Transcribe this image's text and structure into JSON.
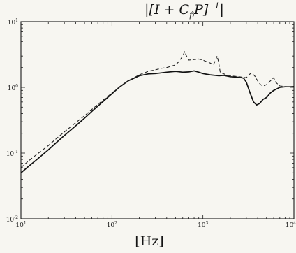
{
  "chart_data": {
    "type": "line",
    "title": "|[I + C_p P]^-1|",
    "title_parts": {
      "open": "|[I + C",
      "sub": "p̂",
      "close": "P]",
      "sup": "−1",
      "end": "|"
    },
    "xlabel": "[Hz]",
    "ylabel": "",
    "x_scale": "log",
    "y_scale": "log",
    "xlim": [
      10,
      10000
    ],
    "ylim": [
      0.01,
      10
    ],
    "xticks": [
      {
        "base": "10",
        "exp": "1",
        "value": 10
      },
      {
        "base": "10",
        "exp": "2",
        "value": 100
      },
      {
        "base": "10",
        "exp": "3",
        "value": 1000
      },
      {
        "base": "10",
        "exp": "4",
        "value": 10000
      }
    ],
    "yticks": [
      {
        "base": "10",
        "exp": "-2",
        "value": 0.01
      },
      {
        "base": "10",
        "exp": "-1",
        "value": 0.1
      },
      {
        "base": "10",
        "exp": "0",
        "value": 1
      },
      {
        "base": "10",
        "exp": "1",
        "value": 10
      }
    ],
    "grid": false,
    "series": [
      {
        "style": "solid",
        "color": "#111111",
        "points": [
          [
            10,
            0.05
          ],
          [
            12,
            0.062
          ],
          [
            15,
            0.08
          ],
          [
            20,
            0.112
          ],
          [
            25,
            0.148
          ],
          [
            30,
            0.185
          ],
          [
            40,
            0.26
          ],
          [
            50,
            0.34
          ],
          [
            60,
            0.43
          ],
          [
            70,
            0.52
          ],
          [
            80,
            0.61
          ],
          [
            100,
            0.8
          ],
          [
            120,
            1.0
          ],
          [
            150,
            1.25
          ],
          [
            200,
            1.5
          ],
          [
            250,
            1.6
          ],
          [
            300,
            1.62
          ],
          [
            400,
            1.7
          ],
          [
            500,
            1.75
          ],
          [
            600,
            1.7
          ],
          [
            700,
            1.72
          ],
          [
            800,
            1.78
          ],
          [
            900,
            1.7
          ],
          [
            1000,
            1.62
          ],
          [
            1200,
            1.55
          ],
          [
            1500,
            1.5
          ],
          [
            1700,
            1.52
          ],
          [
            2000,
            1.45
          ],
          [
            2500,
            1.42
          ],
          [
            2800,
            1.38
          ],
          [
            3000,
            1.2
          ],
          [
            3300,
            0.82
          ],
          [
            3600,
            0.6
          ],
          [
            3900,
            0.54
          ],
          [
            4200,
            0.57
          ],
          [
            4600,
            0.66
          ],
          [
            5000,
            0.7
          ],
          [
            5500,
            0.82
          ],
          [
            6000,
            0.9
          ],
          [
            6500,
            0.95
          ],
          [
            7000,
            1.0
          ],
          [
            8000,
            1.02
          ],
          [
            9000,
            1.02
          ],
          [
            10000,
            1.03
          ]
        ]
      },
      {
        "style": "dashed",
        "color": "#222222",
        "points": [
          [
            10,
            0.06
          ],
          [
            12,
            0.075
          ],
          [
            15,
            0.096
          ],
          [
            20,
            0.13
          ],
          [
            25,
            0.17
          ],
          [
            30,
            0.21
          ],
          [
            40,
            0.29
          ],
          [
            50,
            0.37
          ],
          [
            60,
            0.46
          ],
          [
            70,
            0.55
          ],
          [
            80,
            0.64
          ],
          [
            100,
            0.82
          ],
          [
            120,
            1.0
          ],
          [
            150,
            1.25
          ],
          [
            200,
            1.55
          ],
          [
            250,
            1.75
          ],
          [
            300,
            1.85
          ],
          [
            350,
            1.95
          ],
          [
            400,
            2.0
          ],
          [
            450,
            2.1
          ],
          [
            500,
            2.2
          ],
          [
            550,
            2.5
          ],
          [
            600,
            3.0
          ],
          [
            630,
            3.5
          ],
          [
            660,
            3.0
          ],
          [
            700,
            2.6
          ],
          [
            800,
            2.65
          ],
          [
            900,
            2.7
          ],
          [
            1000,
            2.6
          ],
          [
            1100,
            2.45
          ],
          [
            1200,
            2.35
          ],
          [
            1300,
            2.2
          ],
          [
            1380,
            2.6
          ],
          [
            1430,
            3.0
          ],
          [
            1480,
            2.5
          ],
          [
            1550,
            1.7
          ],
          [
            1700,
            1.6
          ],
          [
            2000,
            1.5
          ],
          [
            2500,
            1.45
          ],
          [
            3000,
            1.4
          ],
          [
            3200,
            1.55
          ],
          [
            3400,
            1.65
          ],
          [
            3700,
            1.5
          ],
          [
            4000,
            1.25
          ],
          [
            4300,
            1.1
          ],
          [
            4600,
            1.05
          ],
          [
            5000,
            1.1
          ],
          [
            5500,
            1.25
          ],
          [
            6000,
            1.4
          ],
          [
            6300,
            1.2
          ],
          [
            7000,
            1.05
          ],
          [
            8000,
            1.03
          ],
          [
            9000,
            1.02
          ],
          [
            10000,
            1.03
          ]
        ]
      }
    ]
  }
}
